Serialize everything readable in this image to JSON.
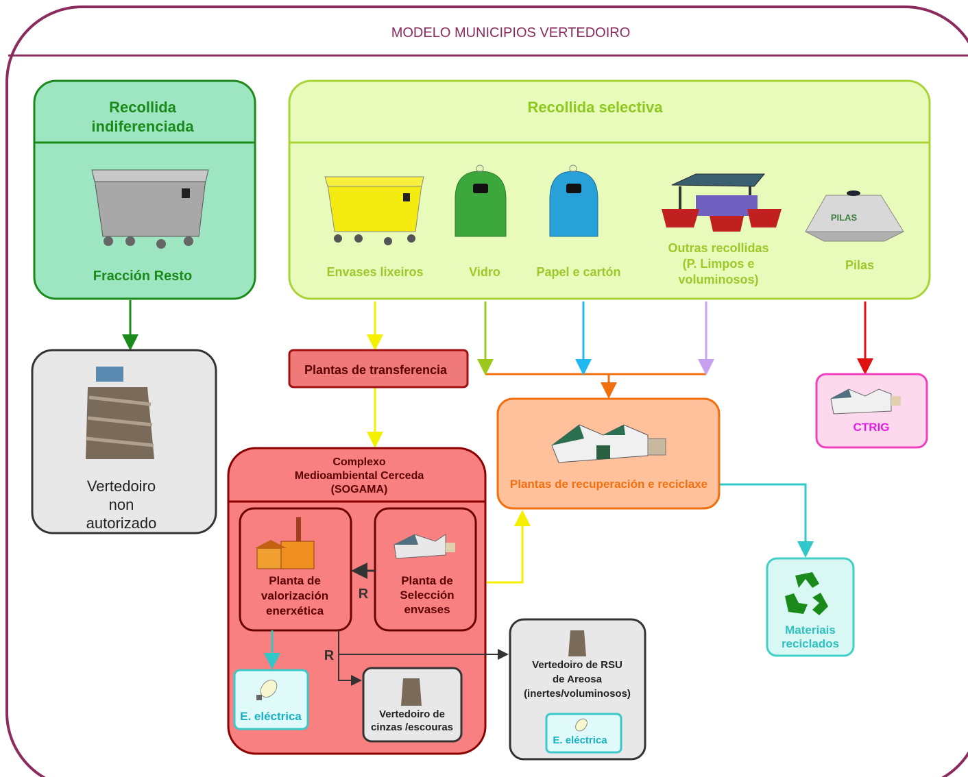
{
  "title": "MODELO MUNICIPIOS VERTEDOIRO",
  "mixed_collection": {
    "title": [
      "Recollida",
      "indiferenciada"
    ],
    "label": "Fracción Resto"
  },
  "selective_collection": {
    "title": "Recollida selectiva",
    "items": [
      {
        "lines": [
          "Envases lixeiros"
        ]
      },
      {
        "lines": [
          "Vidro"
        ]
      },
      {
        "lines": [
          "Papel e cartón"
        ]
      },
      {
        "lines": [
          "Outras recollidas",
          "(P. Limpos  e",
          "voluminosos)"
        ]
      },
      {
        "lines": [
          "Pilas"
        ]
      }
    ],
    "pilas_icon": "PILAS"
  },
  "nodes": [
    {
      "lines": [
        "Vertedoiro",
        "non",
        "autorizado"
      ]
    },
    {
      "lines": [
        "Plantas de transferencia"
      ]
    },
    {
      "lines": [
        "Complexo",
        "Medioambiental Cerceda",
        "(SOGAMA)"
      ]
    },
    {
      "lines": [
        "Planta de",
        "valorización",
        "enerxética"
      ]
    },
    {
      "lines": [
        "Planta de",
        "Selección",
        "envases"
      ]
    },
    {
      "lines": [
        "E. eléctrica"
      ]
    },
    {
      "lines": [
        "Vertedoiro de",
        "cinzas /escouras"
      ]
    },
    {
      "lines": [
        "Vertedoiro de RSU",
        "de Areosa",
        "(inertes/voluminosos)"
      ]
    },
    {
      "lines": [
        "E. eléctrica"
      ]
    },
    {
      "lines": [
        "Plantas de recuperación e reciclaxe"
      ]
    },
    {
      "lines": [
        "CTRIG"
      ]
    },
    {
      "lines": [
        "Materiais",
        "reciclados"
      ]
    }
  ],
  "edge_labels": [
    "R",
    "R"
  ]
}
